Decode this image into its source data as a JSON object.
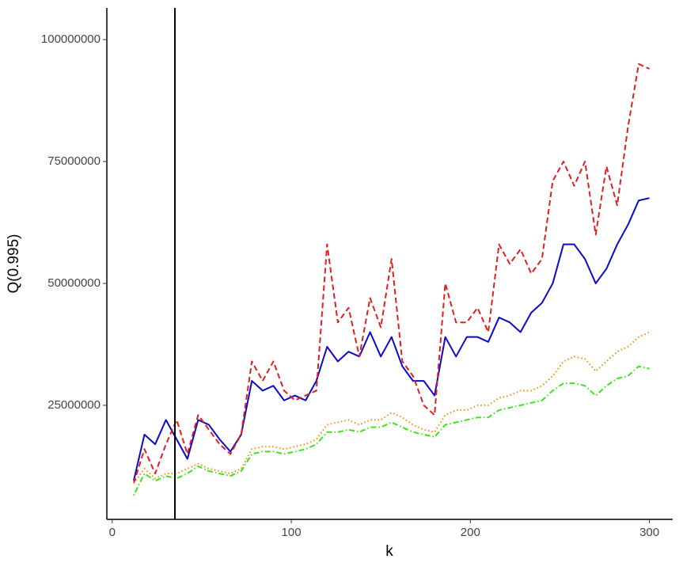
{
  "chart_data": {
    "type": "line",
    "x_label": "k",
    "y_label": "Q(0.995)",
    "x": [
      12,
      18,
      24,
      30,
      36,
      42,
      48,
      54,
      60,
      66,
      72,
      78,
      84,
      90,
      96,
      102,
      108,
      114,
      120,
      126,
      132,
      138,
      144,
      150,
      156,
      162,
      168,
      174,
      180,
      186,
      192,
      198,
      204,
      210,
      216,
      222,
      228,
      234,
      240,
      246,
      252,
      258,
      264,
      270,
      276,
      282,
      288,
      294,
      300
    ],
    "series": [
      {
        "color": "#0a0acc",
        "linestyle": "solid",
        "values": [
          9500000,
          19000000,
          17000000,
          22000000,
          18000000,
          14000000,
          22000000,
          21000000,
          18000000,
          15500000,
          19000000,
          30000000,
          28000000,
          29000000,
          26000000,
          27000000,
          26000000,
          30000000,
          37000000,
          34000000,
          36000000,
          35000000,
          40000000,
          35000000,
          39000000,
          33000000,
          30000000,
          30000000,
          27000000,
          39000000,
          35000000,
          39000000,
          39000000,
          38000000,
          43000000,
          42000000,
          40000000,
          44000000,
          46000000,
          50000000,
          58000000,
          58000000,
          55000000,
          50000000,
          53000000,
          58000000,
          62000000,
          67000000,
          67500000
        ]
      },
      {
        "color": "#e01f1f",
        "linestyle": "dashed",
        "values": [
          9000000,
          16000000,
          11000000,
          17000000,
          22000000,
          15000000,
          23000000,
          20000000,
          17000000,
          15000000,
          19000000,
          34000000,
          30000000,
          34000000,
          28000000,
          26000000,
          27000000,
          28000000,
          58000000,
          42000000,
          45000000,
          35000000,
          47000000,
          41000000,
          55000000,
          34000000,
          31000000,
          25000000,
          23000000,
          50000000,
          42000000,
          42000000,
          45000000,
          40000000,
          58000000,
          54000000,
          57000000,
          52000000,
          55000000,
          71000000,
          75000000,
          70000000,
          75000000,
          60000000,
          74000000,
          66000000,
          82000000,
          95000000,
          94000000
        ]
      },
      {
        "color": "#f28c0f",
        "linestyle": "dotted",
        "values": [
          9000000,
          12000000,
          10000000,
          11000000,
          11000000,
          12000000,
          13000000,
          12000000,
          11500000,
          11000000,
          12000000,
          16000000,
          16500000,
          16500000,
          16000000,
          16500000,
          17000000,
          18000000,
          21000000,
          21500000,
          22000000,
          21000000,
          22000000,
          22000000,
          23500000,
          22500000,
          21000000,
          20000000,
          19500000,
          23000000,
          24000000,
          24000000,
          25000000,
          25000000,
          26500000,
          27000000,
          28000000,
          28000000,
          29000000,
          31000000,
          34000000,
          35000000,
          34500000,
          32000000,
          34000000,
          36000000,
          37000000,
          39000000,
          40000000
        ]
      },
      {
        "color": "#3ae61a",
        "linestyle": "dotdash",
        "values": [
          6500000,
          11000000,
          9500000,
          10500000,
          10000000,
          11000000,
          12500000,
          11500000,
          11000000,
          10500000,
          11500000,
          15000000,
          15500000,
          15500000,
          15000000,
          15500000,
          16000000,
          17000000,
          19500000,
          19500000,
          20000000,
          19500000,
          20500000,
          20500000,
          21500000,
          20500000,
          19500000,
          19000000,
          18500000,
          21000000,
          21500000,
          22000000,
          22500000,
          22500000,
          24000000,
          24500000,
          25000000,
          25500000,
          26000000,
          28000000,
          29500000,
          29500000,
          29000000,
          27000000,
          29000000,
          30500000,
          31000000,
          33000000,
          32500000
        ]
      }
    ],
    "vline": 35,
    "xlim": [
      -3,
      313
    ],
    "xticks": [
      0,
      100,
      200,
      300
    ],
    "ylim": [
      1600000,
      106500000
    ],
    "yticks": [
      25000000,
      50000000,
      75000000,
      100000000
    ]
  }
}
